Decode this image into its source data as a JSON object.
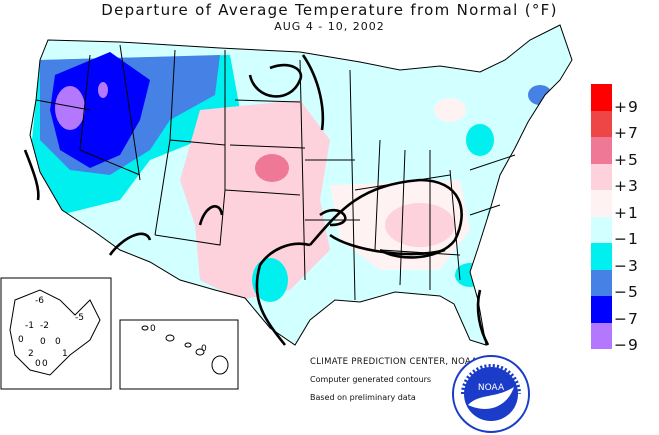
{
  "title": "Departure of Average Temperature from Normal (°F)",
  "date_range": "AUG 4 - 10, 2002",
  "legend": {
    "items": [
      {
        "label": "+9",
        "color": "#ff0000"
      },
      {
        "label": "+7",
        "color": "#ee4646"
      },
      {
        "label": "+5",
        "color": "#ee7896"
      },
      {
        "label": "+3",
        "color": "#fdd2dc"
      },
      {
        "label": "+1",
        "color": "#fff2f2"
      },
      {
        "label": "−1",
        "color": "#d2ffff"
      },
      {
        "label": "−3",
        "color": "#00f0f0"
      },
      {
        "label": "−5",
        "color": "#4682e6"
      },
      {
        "label": "−7",
        "color": "#0000ff"
      },
      {
        "label": "−9",
        "color": "#b478ff"
      }
    ]
  },
  "credits": {
    "center": "CLIMATE PREDICTION CENTER, NOAA",
    "line1": "Computer generated contours",
    "line2": "Based on preliminary data"
  },
  "alaska_contour_labels": [
    "-6",
    "-5",
    "-1",
    "-2",
    "0",
    "0",
    "0",
    "2",
    "0",
    "1",
    "0"
  ],
  "hawaii_contour_labels": [
    "0",
    "0"
  ],
  "noaa_logo_text": "NOAA",
  "colors": {
    "land_outline": "#000000",
    "contour": "#000000"
  }
}
